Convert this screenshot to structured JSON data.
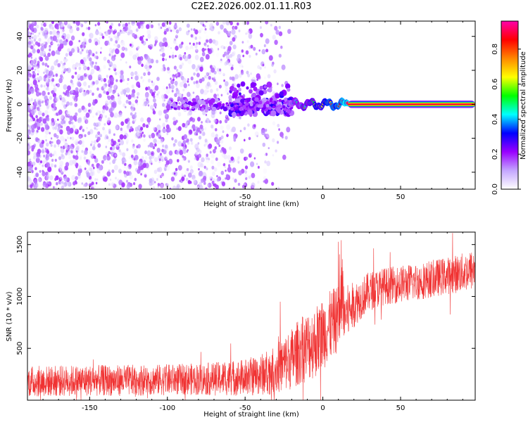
{
  "title": "C2E2.2026.002.01.11.R03",
  "chart_data": [
    {
      "type": "heatmap",
      "xlabel": "Height of straight line (km)",
      "ylabel": "Frequency (Hz)",
      "xlim": [
        -190,
        98
      ],
      "ylim": [
        -50,
        49
      ],
      "xticks": [
        -150,
        -100,
        -50,
        0,
        50
      ],
      "yticks": [
        -40,
        -20,
        0,
        20,
        40
      ],
      "grid": false,
      "colorbar": {
        "label": "Normalized spectral amplitude",
        "range": [
          0,
          0.96
        ],
        "ticks": [
          0.0,
          0.2,
          0.4,
          0.6,
          0.8
        ],
        "colormap": [
          "#ffffff",
          "#c4a6ff",
          "#9900ff",
          "#0000ff",
          "#00ffff",
          "#00ff00",
          "#ffff00",
          "#ff8800",
          "#ff0000",
          "#ff00aa"
        ]
      },
      "features": [
        {
          "region": "noise",
          "x_range": [
            -190,
            -20
          ],
          "freq_range": [
            -50,
            49
          ],
          "amplitude_range": [
            0.0,
            0.18
          ]
        },
        {
          "region": "onset",
          "x_range": [
            -50,
            -22
          ],
          "freq_range": [
            -6,
            12
          ],
          "amplitude_range": [
            0.1,
            0.3
          ]
        },
        {
          "region": "signal_wobble",
          "x_range": [
            -22,
            16
          ],
          "freq_center": 0,
          "amplitude_range": [
            0.3,
            0.9
          ]
        },
        {
          "region": "signal_steady",
          "x_range": [
            16,
            98
          ],
          "freq_center": 0,
          "amplitude": 0.9
        }
      ]
    },
    {
      "type": "line",
      "xlabel": "Height of straight line (km)",
      "ylabel": "SNR (10 * v/v)",
      "xlim": [
        -190,
        98
      ],
      "ylim": [
        0,
        1620
      ],
      "xticks": [
        -150,
        -100,
        -50,
        0,
        50
      ],
      "yticks": [
        500,
        1000,
        1500
      ],
      "grid": false,
      "series": [
        {
          "color": "#f03232",
          "x": [
            -190,
            -170,
            -150,
            -130,
            -110,
            -90,
            -70,
            -50,
            -40,
            -30,
            -20,
            -15,
            -10,
            -5,
            0,
            5,
            10,
            15,
            20,
            25,
            30,
            40,
            50,
            60,
            70,
            80,
            90,
            98
          ],
          "y": [
            180,
            185,
            190,
            190,
            195,
            200,
            205,
            220,
            245,
            300,
            400,
            470,
            520,
            560,
            640,
            720,
            790,
            830,
            920,
            990,
            1050,
            1100,
            1120,
            1140,
            1170,
            1200,
            1230,
            1260
          ],
          "noise_amplitude": [
            150,
            150,
            150,
            150,
            150,
            150,
            160,
            180,
            200,
            240,
            300,
            320,
            340,
            350,
            350,
            340,
            320,
            280,
            220,
            200,
            190,
            180,
            180,
            180,
            180,
            180,
            190,
            200
          ]
        }
      ]
    }
  ]
}
